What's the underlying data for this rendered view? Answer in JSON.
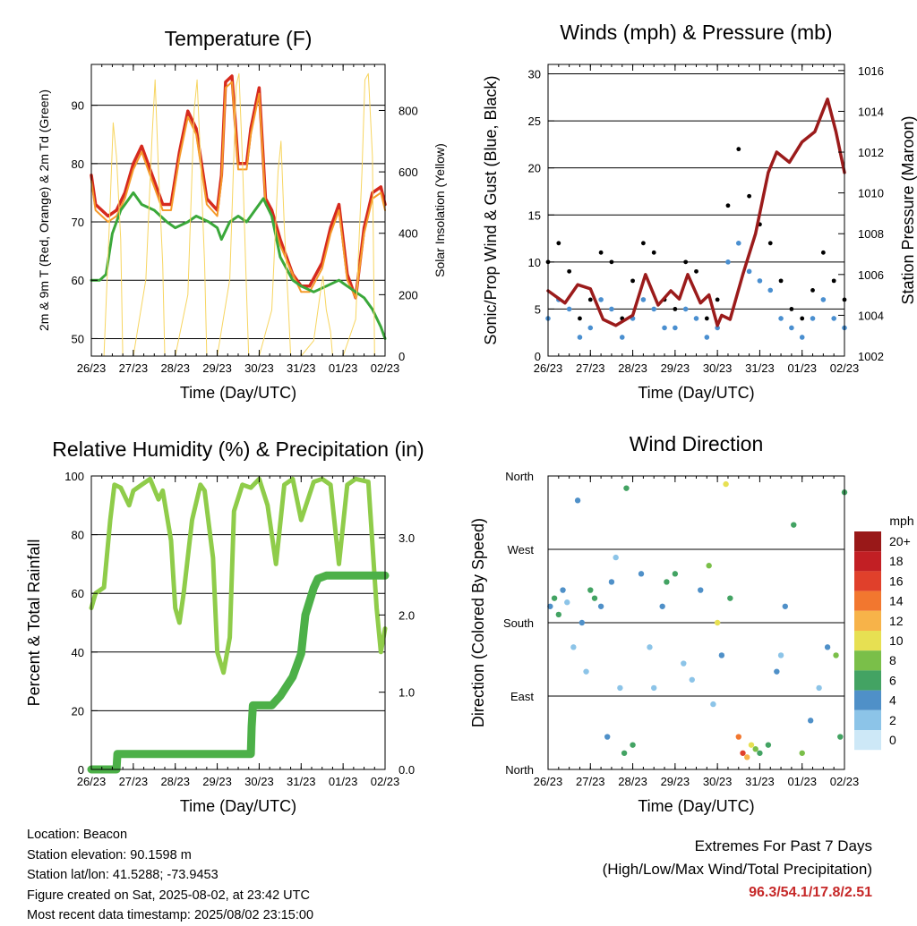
{
  "x_tick_labels": [
    "26/23",
    "27/23",
    "28/23",
    "29/23",
    "30/23",
    "31/23",
    "01/23",
    "02/23"
  ],
  "xlabel": "Time (Day/UTC)",
  "colors": {
    "temp_2m": "#d62a1e",
    "temp_9m": "#f59a2a",
    "dewpoint": "#3aa83a",
    "solar": "#f7d560",
    "wind": "#4a8fd0",
    "gust": "#000000",
    "pressure": "#9b1b1b",
    "rh": "#8fcc4a",
    "precip": "#4cb048",
    "extremes": "#c62828"
  },
  "chart_data": [
    {
      "id": "temperature",
      "type": "line",
      "title": "Temperature (F)",
      "ylabel": "2m & 9m T (Red, Orange) & 2m Td (Green)",
      "y2label": "Solar Insolation (Yellow)",
      "ylim": [
        47,
        97
      ],
      "y2lim": [
        0,
        950
      ],
      "yticks": [
        50,
        60,
        70,
        80,
        90
      ],
      "y2ticks": [
        0,
        200,
        400,
        600,
        800
      ],
      "series": [
        {
          "key": "t2m",
          "x": [
            0,
            0.1,
            0.25,
            0.4,
            0.6,
            0.8,
            1.0,
            1.2,
            1.5,
            1.7,
            1.9,
            2.1,
            2.3,
            2.5,
            2.75,
            3.0,
            3.1,
            3.2,
            3.35,
            3.5,
            3.7,
            3.8,
            4.0,
            4.15,
            4.3,
            4.5,
            4.8,
            5.0,
            5.2,
            5.5,
            5.7,
            5.9,
            6.1,
            6.3,
            6.5,
            6.7,
            6.9,
            7.0
          ],
          "y": [
            78,
            73,
            72,
            71,
            72,
            75,
            80,
            83,
            77,
            73,
            73,
            82,
            89,
            86,
            74,
            72,
            78,
            94,
            95,
            80,
            80,
            86,
            93,
            74,
            72,
            67,
            61,
            59,
            59,
            63,
            69,
            73,
            61,
            57,
            69,
            75,
            76,
            73
          ]
        },
        {
          "key": "t9m",
          "x": [
            0,
            0.1,
            0.25,
            0.4,
            0.6,
            0.8,
            1.0,
            1.2,
            1.5,
            1.7,
            1.9,
            2.1,
            2.3,
            2.5,
            2.75,
            3.0,
            3.1,
            3.2,
            3.35,
            3.5,
            3.7,
            3.8,
            4.0,
            4.15,
            4.3,
            4.5,
            4.8,
            5.0,
            5.2,
            5.5,
            5.7,
            5.9,
            6.1,
            6.3,
            6.5,
            6.7,
            6.9,
            7.0
          ],
          "y": [
            77,
            72,
            71,
            70,
            71,
            74,
            79,
            82,
            76,
            72,
            72,
            81,
            88,
            85,
            73,
            71,
            77,
            93,
            94,
            79,
            79,
            85,
            92,
            73,
            71,
            66,
            61,
            58,
            58,
            62,
            68,
            72,
            60,
            57,
            68,
            74,
            75,
            72
          ]
        },
        {
          "key": "td",
          "x": [
            0,
            0.2,
            0.35,
            0.5,
            0.7,
            0.9,
            1.0,
            1.2,
            1.5,
            1.8,
            2.0,
            2.3,
            2.5,
            2.8,
            3.0,
            3.1,
            3.3,
            3.5,
            3.7,
            3.9,
            4.1,
            4.3,
            4.5,
            4.8,
            5.0,
            5.3,
            5.6,
            5.9,
            6.1,
            6.3,
            6.5,
            6.7,
            6.9,
            7.0
          ],
          "y": [
            60,
            60,
            61,
            68,
            72,
            74,
            75,
            73,
            72,
            70,
            69,
            70,
            71,
            70,
            69,
            67,
            70,
            71,
            70,
            72,
            74,
            71,
            64,
            60,
            59,
            58,
            59,
            60,
            59,
            58,
            57,
            55,
            52,
            50
          ]
        },
        {
          "key": "solar",
          "x": [
            0,
            0.3,
            0.45,
            0.52,
            0.6,
            0.7,
            0.75,
            1.0,
            1.3,
            1.45,
            1.52,
            1.6,
            1.7,
            1.75,
            2.0,
            2.3,
            2.45,
            2.52,
            2.6,
            2.7,
            2.75,
            3.0,
            3.3,
            3.45,
            3.52,
            3.6,
            3.7,
            3.75,
            4.0,
            4.3,
            4.45,
            4.52,
            4.6,
            4.7,
            4.75,
            5.0,
            5.3,
            5.45,
            5.52,
            5.6,
            5.7,
            5.75,
            6.0,
            6.3,
            6.45,
            6.52,
            6.6,
            6.7,
            6.75,
            7.0
          ],
          "y": [
            0,
            0,
            500,
            760,
            650,
            380,
            0,
            0,
            250,
            720,
            900,
            600,
            300,
            0,
            0,
            200,
            800,
            900,
            650,
            300,
            0,
            0,
            250,
            880,
            920,
            640,
            200,
            0,
            0,
            150,
            600,
            700,
            420,
            150,
            0,
            0,
            50,
            200,
            260,
            150,
            80,
            0,
            0,
            120,
            600,
            900,
            920,
            650,
            0,
            0
          ]
        }
      ]
    },
    {
      "id": "winds",
      "type": "scatter",
      "title": "Winds (mph) & Pressure (mb)",
      "ylabel": "Sonic/Prop Wind & Gust (Blue, Black)",
      "y2label": "Station Pressure (Maroon)",
      "ylim": [
        0,
        31
      ],
      "y2lim": [
        1002,
        1016.3
      ],
      "yticks": [
        0,
        5,
        10,
        15,
        20,
        25,
        30
      ],
      "y2ticks": [
        1002,
        1004,
        1006,
        1008,
        1010,
        1012,
        1014,
        1016
      ],
      "series": [
        {
          "key": "wind",
          "x": [
            0,
            0.25,
            0.5,
            0.75,
            1.0,
            1.25,
            1.5,
            1.75,
            2.0,
            2.25,
            2.5,
            2.75,
            3.0,
            3.25,
            3.5,
            3.75,
            4.0,
            4.25,
            4.5,
            4.75,
            5.0,
            5.25,
            5.5,
            5.75,
            6.0,
            6.25,
            6.5,
            6.75,
            7.0
          ],
          "y": [
            4,
            6,
            5,
            2,
            3,
            6,
            5,
            2,
            4,
            6,
            5,
            3,
            3,
            5,
            4,
            2,
            3,
            10,
            12,
            9,
            8,
            7,
            4,
            3,
            2,
            4,
            6,
            4,
            3
          ]
        },
        {
          "key": "gust",
          "x": [
            0,
            0.25,
            0.5,
            0.75,
            1.0,
            1.25,
            1.5,
            1.75,
            2.0,
            2.25,
            2.5,
            2.75,
            3.0,
            3.25,
            3.5,
            3.75,
            4.0,
            4.25,
            4.5,
            4.75,
            5.0,
            5.25,
            5.5,
            5.75,
            6.0,
            6.25,
            6.5,
            6.75,
            7.0
          ],
          "y": [
            10,
            12,
            9,
            4,
            6,
            11,
            10,
            4,
            8,
            12,
            11,
            6,
            5,
            10,
            9,
            4,
            6,
            16,
            22,
            17,
            14,
            12,
            8,
            5,
            4,
            7,
            11,
            8,
            6
          ]
        },
        {
          "key": "pressure",
          "x": [
            0,
            0.4,
            0.7,
            1.0,
            1.3,
            1.6,
            2.0,
            2.3,
            2.6,
            2.9,
            3.1,
            3.3,
            3.6,
            3.8,
            4.0,
            4.1,
            4.3,
            4.6,
            4.9,
            5.2,
            5.4,
            5.7,
            6.0,
            6.3,
            6.6,
            6.8,
            7.0
          ],
          "y": [
            1005.2,
            1004.6,
            1005.5,
            1005.3,
            1003.8,
            1003.5,
            1004.0,
            1006.0,
            1004.5,
            1005.2,
            1004.8,
            1006.0,
            1004.6,
            1005.0,
            1003.5,
            1004.0,
            1003.8,
            1006.0,
            1008.0,
            1011.0,
            1012.0,
            1011.5,
            1012.5,
            1013.0,
            1014.6,
            1013.0,
            1011.0
          ]
        }
      ]
    },
    {
      "id": "humidity",
      "type": "line",
      "title": "Relative Humidity (%) & Precipitation (in)",
      "ylabel": "Percent & Total Rainfall",
      "ylim": [
        0,
        100
      ],
      "y2lim": [
        0,
        3.8
      ],
      "yticks": [
        0,
        20,
        40,
        60,
        80,
        100
      ],
      "y2ticks": [
        0,
        1.0,
        2.0,
        3.0
      ],
      "series": [
        {
          "key": "rh",
          "x": [
            0,
            0.1,
            0.3,
            0.45,
            0.55,
            0.7,
            0.9,
            1.0,
            1.2,
            1.4,
            1.6,
            1.7,
            1.9,
            2.0,
            2.1,
            2.2,
            2.4,
            2.6,
            2.7,
            2.9,
            3.0,
            3.15,
            3.3,
            3.4,
            3.6,
            3.8,
            4.0,
            4.2,
            4.4,
            4.6,
            4.8,
            5.0,
            5.3,
            5.5,
            5.7,
            5.9,
            6.1,
            6.3,
            6.6,
            6.8,
            6.9,
            7.0
          ],
          "y": [
            55,
            60,
            62,
            85,
            97,
            96,
            90,
            95,
            97,
            99,
            92,
            95,
            78,
            55,
            50,
            60,
            85,
            97,
            95,
            72,
            40,
            33,
            45,
            88,
            97,
            96,
            99,
            90,
            70,
            97,
            99,
            85,
            98,
            99,
            97,
            70,
            97,
            99,
            98,
            55,
            40,
            48
          ]
        },
        {
          "key": "precip",
          "x": [
            0,
            0.6,
            0.62,
            0.8,
            3.8,
            3.82,
            3.85,
            4.3,
            4.5,
            4.8,
            5.0,
            5.1,
            5.3,
            5.4,
            5.6,
            6.5,
            7.0
          ],
          "y": [
            0,
            0,
            0.2,
            0.2,
            0.2,
            0.55,
            0.83,
            0.83,
            0.95,
            1.2,
            1.5,
            2.0,
            2.35,
            2.47,
            2.51,
            2.51,
            2.51
          ]
        }
      ]
    },
    {
      "id": "wind_direction",
      "type": "scatter",
      "title": "Wind Direction",
      "ylabel": "Direction (Colored By Speed)",
      "ylim": [
        0,
        360
      ],
      "ytick_labels": [
        "North",
        "East",
        "South",
        "West",
        "North"
      ],
      "colorbar": {
        "unit": "mph",
        "labels": [
          "0",
          "2",
          "4",
          "6",
          "8",
          "10",
          "12",
          "14",
          "16",
          "18",
          "20+"
        ],
        "colors": [
          "#cde8f7",
          "#8cc4e8",
          "#4f90c8",
          "#43a363",
          "#7abf49",
          "#e7e052",
          "#f7b349",
          "#f2772f",
          "#e0402b",
          "#c21f24",
          "#991818"
        ]
      },
      "series": [
        {
          "key": "direction",
          "x": [
            0.05,
            0.15,
            0.25,
            0.35,
            0.45,
            0.6,
            0.7,
            0.8,
            0.9,
            1.0,
            1.1,
            1.25,
            1.4,
            1.5,
            1.6,
            1.7,
            1.8,
            1.85,
            2.0,
            2.2,
            2.4,
            2.5,
            2.7,
            2.8,
            3.0,
            3.2,
            3.4,
            3.6,
            3.8,
            3.9,
            4.0,
            4.1,
            4.2,
            4.3,
            4.5,
            4.6,
            4.7,
            4.8,
            4.9,
            5.0,
            5.2,
            5.4,
            5.5,
            5.6,
            5.8,
            6.0,
            6.2,
            6.4,
            6.6,
            6.8,
            6.9,
            7.0
          ],
          "y": [
            200,
            210,
            190,
            220,
            205,
            150,
            330,
            180,
            120,
            220,
            210,
            200,
            40,
            230,
            260,
            100,
            20,
            345,
            30,
            240,
            150,
            100,
            200,
            230,
            240,
            130,
            110,
            220,
            250,
            80,
            180,
            140,
            350,
            210,
            40,
            20,
            15,
            30,
            25,
            20,
            30,
            120,
            140,
            200,
            300,
            20,
            60,
            100,
            150,
            140,
            40,
            340
          ],
          "speed": [
            4,
            6,
            5,
            3,
            2,
            1,
            3,
            4,
            2,
            6,
            5,
            4,
            4,
            3,
            2,
            2,
            6,
            6,
            5,
            3,
            2,
            1,
            3,
            6,
            5,
            2,
            2,
            3,
            8,
            2,
            10,
            4,
            9,
            6,
            14,
            16,
            12,
            10,
            8,
            6,
            6,
            3,
            2,
            3,
            6,
            8,
            3,
            2,
            4,
            8,
            6,
            5
          ]
        }
      ]
    }
  ],
  "info": {
    "location": "Location: Beacon",
    "elevation": "Station elevation: 90.1598 m",
    "latlon": "Station lat/lon: 41.5288; -73.9453",
    "created": "Figure created on Sat, 2025-08-02, at 23:42 UTC",
    "timestamp": "Most recent data timestamp: 2025/08/02 23:15:00"
  },
  "extremes": {
    "title": "Extremes For Past 7 Days",
    "subtitle": "(High/Low/Max Wind/Total Precipitation)",
    "value": "96.3/54.1/17.8/2.51"
  }
}
